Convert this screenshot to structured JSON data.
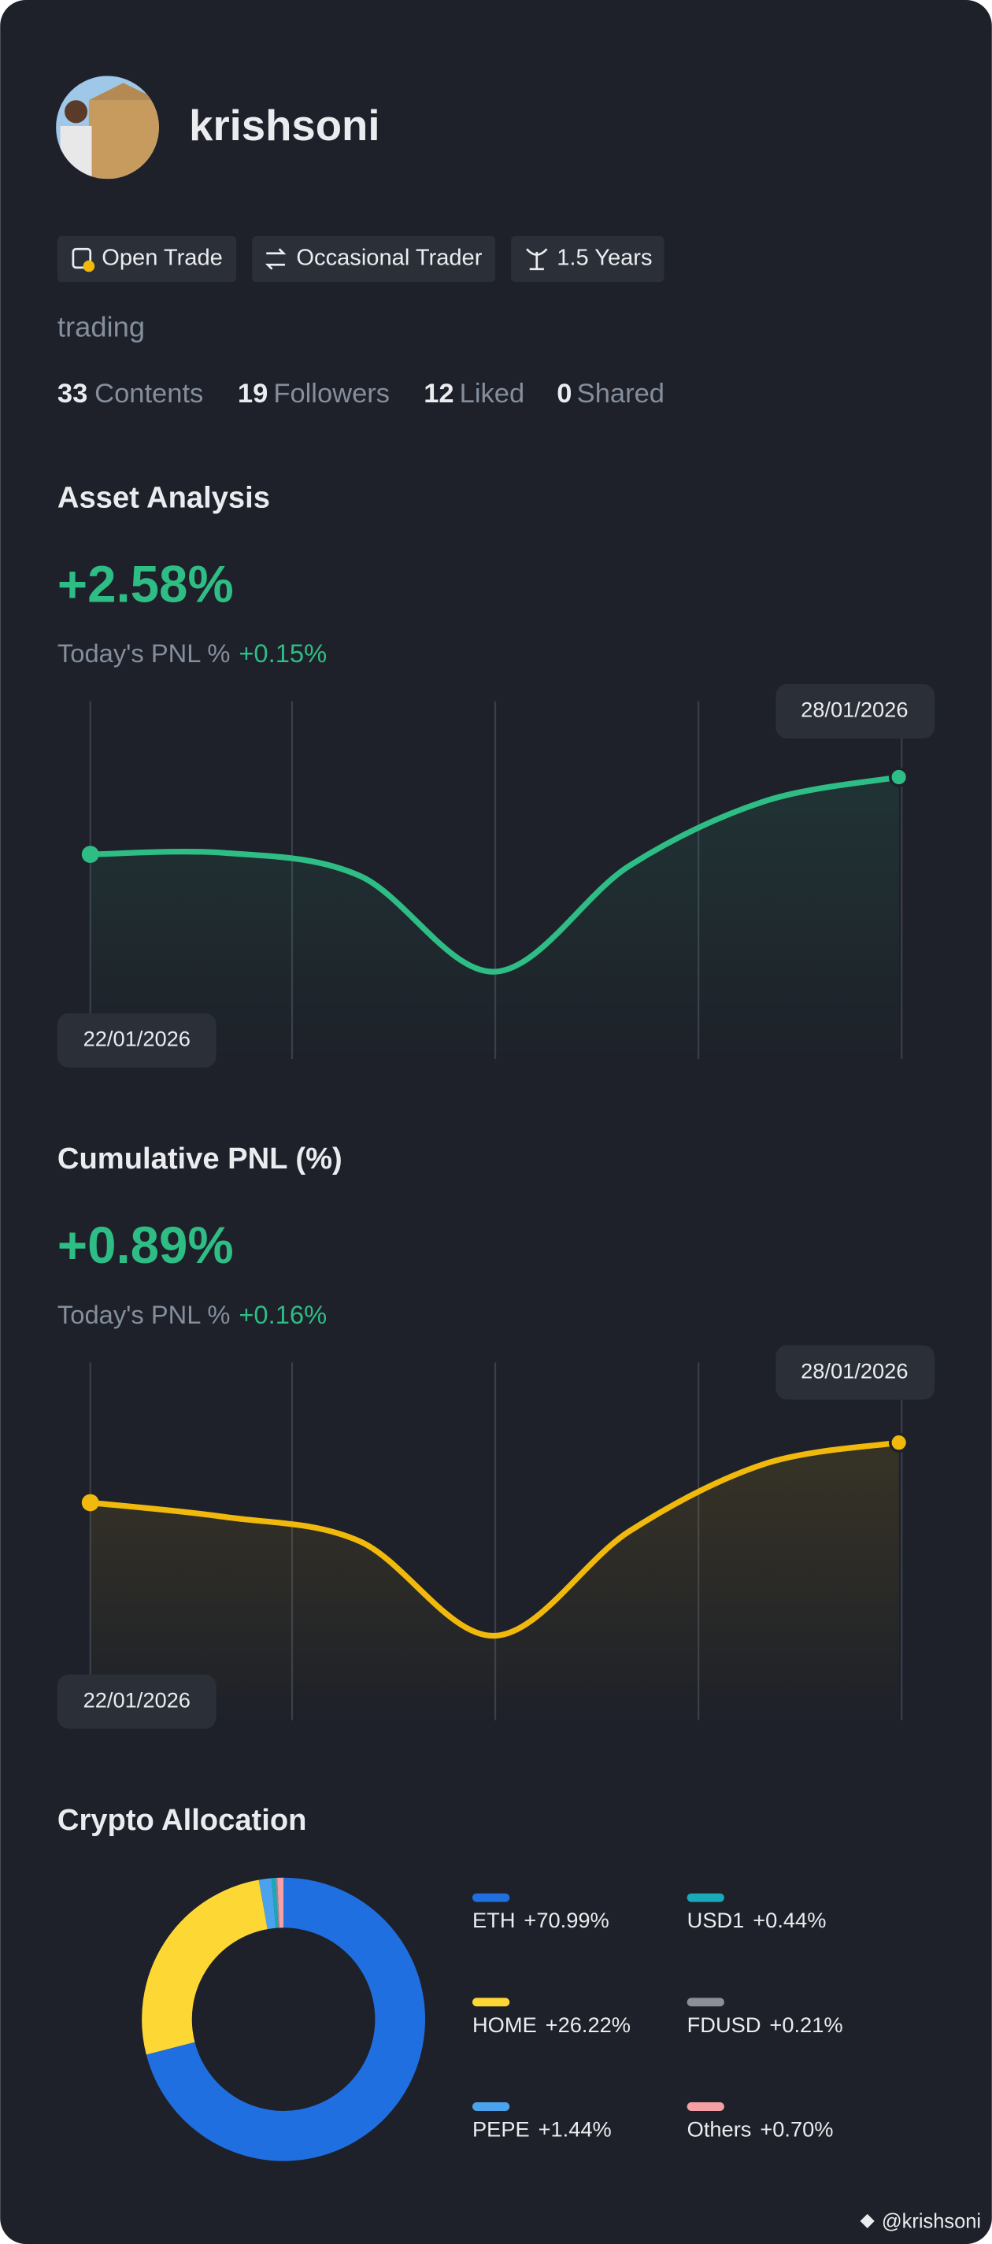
{
  "profile": {
    "name": "krishsoni",
    "tags": [
      "Open Trade",
      "Occasional Trader",
      "1.5 Years"
    ],
    "bio": "trading",
    "stats": [
      {
        "value": "33",
        "label": "Contents"
      },
      {
        "value": "19",
        "label": "Followers"
      },
      {
        "value": "12",
        "label": "Liked"
      },
      {
        "value": "0",
        "label": "Shared"
      }
    ]
  },
  "chart_data": [
    {
      "type": "line",
      "title": "Asset Analysis",
      "headline": "+2.58%",
      "subtitle": "Today's PNL %",
      "change": "+0.15%",
      "categories": [
        "22/01/2026",
        null,
        null,
        null,
        null,
        null,
        "28/01/2026"
      ],
      "series": [
        {
          "color": "#2ebd85",
          "values": [
            1.43,
            1.44,
            1.28,
            0.61,
            1.35,
            1.8,
            1.97
          ]
        }
      ],
      "ylim": [
        0,
        2.5
      ]
    },
    {
      "type": "line",
      "title": "Cumulative PNL (%)",
      "headline": "+0.89%",
      "subtitle": "Today's PNL %",
      "change": "+0.16%",
      "categories": [
        "22/01/2026",
        null,
        null,
        null,
        null,
        null,
        "28/01/2026"
      ],
      "series": [
        {
          "color": "#f0b90b",
          "values": [
            1.52,
            1.42,
            1.25,
            0.59,
            1.32,
            1.79,
            1.94
          ]
        }
      ],
      "ylim": [
        0,
        2.5
      ]
    },
    {
      "type": "pie",
      "title": "Crypto Allocation",
      "categories": [
        "ETH",
        "HOME",
        "PEPE",
        "USD1",
        "FDUSD",
        "Others"
      ],
      "values": [
        70.99,
        26.22,
        1.44,
        0.44,
        0.21,
        0.7
      ],
      "value_labels": [
        "+70.99%",
        "+26.22%",
        "+1.44%",
        "+0.44%",
        "+0.21%",
        "+0.70%"
      ],
      "colors": [
        "#1f6fe0",
        "#fdd835",
        "#4aa3ec",
        "#1aa9b9",
        "#8a8f98",
        "#f4a0a6"
      ]
    }
  ],
  "footer": {
    "handle": "@krishsoni"
  }
}
